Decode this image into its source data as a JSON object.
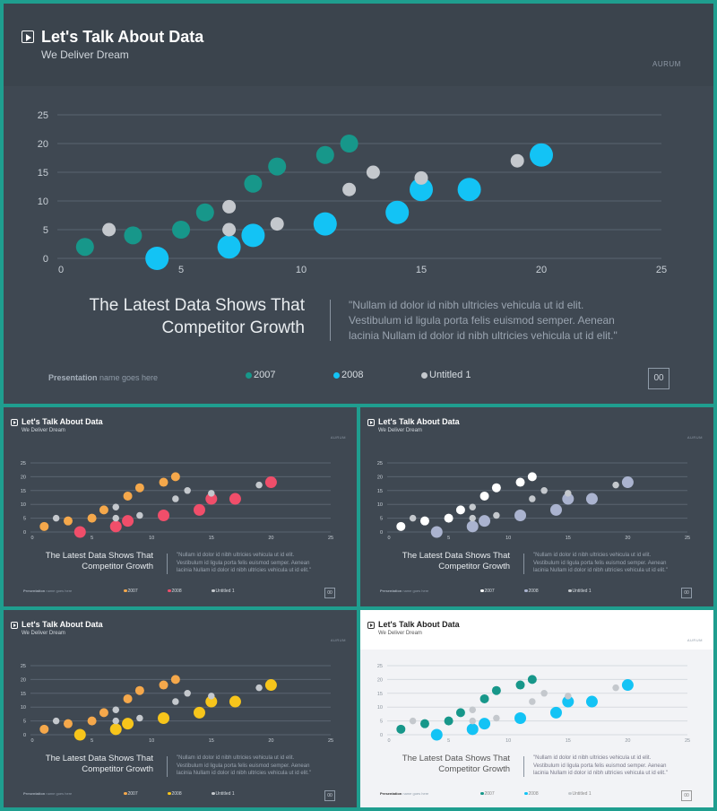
{
  "slide": {
    "title": "Let's Talk About Data",
    "subtitle": "We Deliver Dream",
    "brand": "AURUM",
    "headline_line1": "The Latest Data Shows That",
    "headline_line2": "Competitor Growth",
    "quote_line1": "\"Nullam id dolor id nibh ultricies vehicula ut id elit.",
    "quote_line2": "Vestibulum id ligula porta felis euismod semper. Aenean",
    "quote_line3": "lacinia Nullam id dolor id nibh ultricies vehicula ut id elit.\"",
    "footer_bold": "Presentation",
    "footer_rest": " name goes here",
    "page_number": "00",
    "legend": [
      "2007",
      "2008",
      "Untitled 1"
    ]
  },
  "themes": [
    {
      "id": "main",
      "colors": [
        "#17978a",
        "#13c3f5",
        "#c4c8cd"
      ],
      "grid": "#5a6470",
      "tick": "#c9d0d7"
    },
    {
      "id": "s1",
      "colors": [
        "#f5a84b",
        "#f04e6a",
        "#c4c8cd"
      ],
      "grid": "#5a6470",
      "tick": "#c9d0d7"
    },
    {
      "id": "s2",
      "colors": [
        "#ffffff",
        "#aab3cf",
        "#c4c8cd"
      ],
      "grid": "#5a6470",
      "tick": "#c9d0d7"
    },
    {
      "id": "s3",
      "colors": [
        "#f5a84b",
        "#f7c51b",
        "#c4c8cd"
      ],
      "grid": "#5a6470",
      "tick": "#c9d0d7"
    },
    {
      "id": "s4",
      "colors": [
        "#17978a",
        "#13c3f5",
        "#c4c8cd"
      ],
      "grid": "#d7dbe0",
      "tick": "#8a939c"
    }
  ],
  "chart_data": {
    "type": "scatter",
    "xlim": [
      0,
      25
    ],
    "ylim": [
      0,
      25
    ],
    "xticks": [
      0,
      5,
      10,
      15,
      20,
      25
    ],
    "yticks": [
      0,
      5,
      10,
      15,
      20,
      25
    ],
    "grid": true,
    "legend_position": "bottom",
    "series": [
      {
        "name": "2007",
        "size": "medium",
        "points": [
          [
            1,
            2
          ],
          [
            3,
            4
          ],
          [
            5,
            5
          ],
          [
            6,
            8
          ],
          [
            8,
            13
          ],
          [
            9,
            16
          ],
          [
            11,
            18
          ],
          [
            12,
            20
          ]
        ]
      },
      {
        "name": "2008",
        "size": "large",
        "points": [
          [
            4,
            0
          ],
          [
            7,
            2
          ],
          [
            8,
            4
          ],
          [
            11,
            6
          ],
          [
            14,
            8
          ],
          [
            15,
            12
          ],
          [
            17,
            12
          ],
          [
            20,
            18
          ]
        ]
      },
      {
        "name": "Untitled 1",
        "size": "small",
        "points": [
          [
            2,
            5
          ],
          [
            7,
            5
          ],
          [
            7,
            9
          ],
          [
            9,
            6
          ],
          [
            12,
            12
          ],
          [
            13,
            15
          ],
          [
            15,
            14
          ],
          [
            19,
            17
          ]
        ]
      }
    ]
  }
}
